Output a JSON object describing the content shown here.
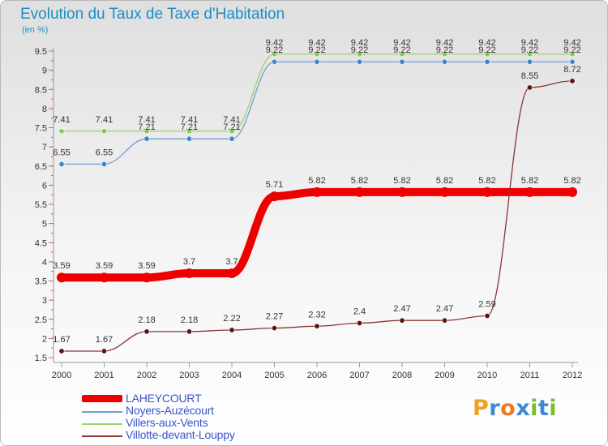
{
  "title": "Evolution du Taux de Taxe d'Habitation",
  "unit_label": "(en %)",
  "logo": {
    "text": "Proxiti",
    "letters": [
      {
        "ch": "P",
        "color": "#f0a020"
      },
      {
        "ch": "r",
        "color": "#3a8ad8"
      },
      {
        "ch": "o",
        "color": "#f07a20"
      },
      {
        "ch": "x",
        "color": "#3a8ad8"
      },
      {
        "ch": "i",
        "color": "#78c028"
      },
      {
        "ch": "t",
        "color": "#3a8ad8"
      },
      {
        "ch": "i",
        "color": "#78c028"
      }
    ]
  },
  "chart_data": {
    "type": "line",
    "title": "Evolution du Taux de Taxe d'Habitation",
    "ylabel": "(en %)",
    "xlabel": "",
    "ylim": [
      1.5,
      9.5
    ],
    "yticks": [
      "1.5",
      "2",
      "2.5",
      "3",
      "3.5",
      "4",
      "4.5",
      "5",
      "5.5",
      "6",
      "6.5",
      "7",
      "7.5",
      "8",
      "8.5",
      "9",
      "9.5"
    ],
    "categories": [
      "2000",
      "2001",
      "2002",
      "2003",
      "2004",
      "2005",
      "2006",
      "2007",
      "2008",
      "2009",
      "2010",
      "2011",
      "2012"
    ],
    "series": [
      {
        "name": "Villers-aux-Vents",
        "color": "#99d36b",
        "marker": "#88c94f",
        "values": [
          7.41,
          7.41,
          7.41,
          7.41,
          7.41,
          9.42,
          9.42,
          9.42,
          9.42,
          9.42,
          9.42,
          9.42,
          9.42
        ],
        "labels": [
          "7.41",
          "7.41",
          "7.41",
          "7.41",
          "7.41",
          "9.42",
          "9.42",
          "9.42",
          "9.42",
          "9.42",
          "9.42",
          "9.42",
          "9.42"
        ]
      },
      {
        "name": "Noyers-Auzécourt",
        "color": "#6fa1cf",
        "marker": "#3d87c5",
        "values": [
          6.55,
          6.55,
          7.21,
          7.21,
          7.21,
          9.22,
          9.22,
          9.22,
          9.22,
          9.22,
          9.22,
          9.22,
          9.22
        ],
        "labels": [
          "6.55",
          "6.55",
          "7.21",
          "7.21",
          "7.21",
          "9.22",
          "9.22",
          "9.22",
          "9.22",
          "9.22",
          "9.22",
          "9.22",
          "9.22"
        ]
      },
      {
        "name": "LAHEYCOURT",
        "color": "#ee0000",
        "marker": "#ee0000",
        "values": [
          3.59,
          3.59,
          3.59,
          3.7,
          3.7,
          5.71,
          5.82,
          5.82,
          5.82,
          5.82,
          5.82,
          5.82,
          5.82
        ],
        "labels": [
          "3.59",
          "3.59",
          "3.59",
          "3.7",
          "3.7",
          "5.71",
          "5.82",
          "5.82",
          "5.82",
          "5.82",
          "5.82",
          "5.82",
          "5.82"
        ]
      },
      {
        "name": "Villotte-devant-Louppy",
        "color": "#8a3434",
        "marker": "#5a1414",
        "values": [
          1.67,
          1.67,
          2.18,
          2.18,
          2.22,
          2.27,
          2.32,
          2.4,
          2.47,
          2.47,
          2.59,
          8.55,
          8.72
        ],
        "labels": [
          "1.67",
          "1.67",
          "2.18",
          "2.18",
          "2.22",
          "2.27",
          "2.32",
          "2.4",
          "2.47",
          "2.47",
          "2.59",
          "8.55",
          "8.72"
        ]
      }
    ],
    "legend": [
      {
        "name": "LAHEYCOURT",
        "color": "#ee0000"
      },
      {
        "name": "Noyers-Auzécourt",
        "color": "#6fa1cf"
      },
      {
        "name": "Villers-aux-Vents",
        "color": "#99d36b"
      },
      {
        "name": "Villotte-devant-Louppy",
        "color": "#8a3434"
      }
    ]
  }
}
